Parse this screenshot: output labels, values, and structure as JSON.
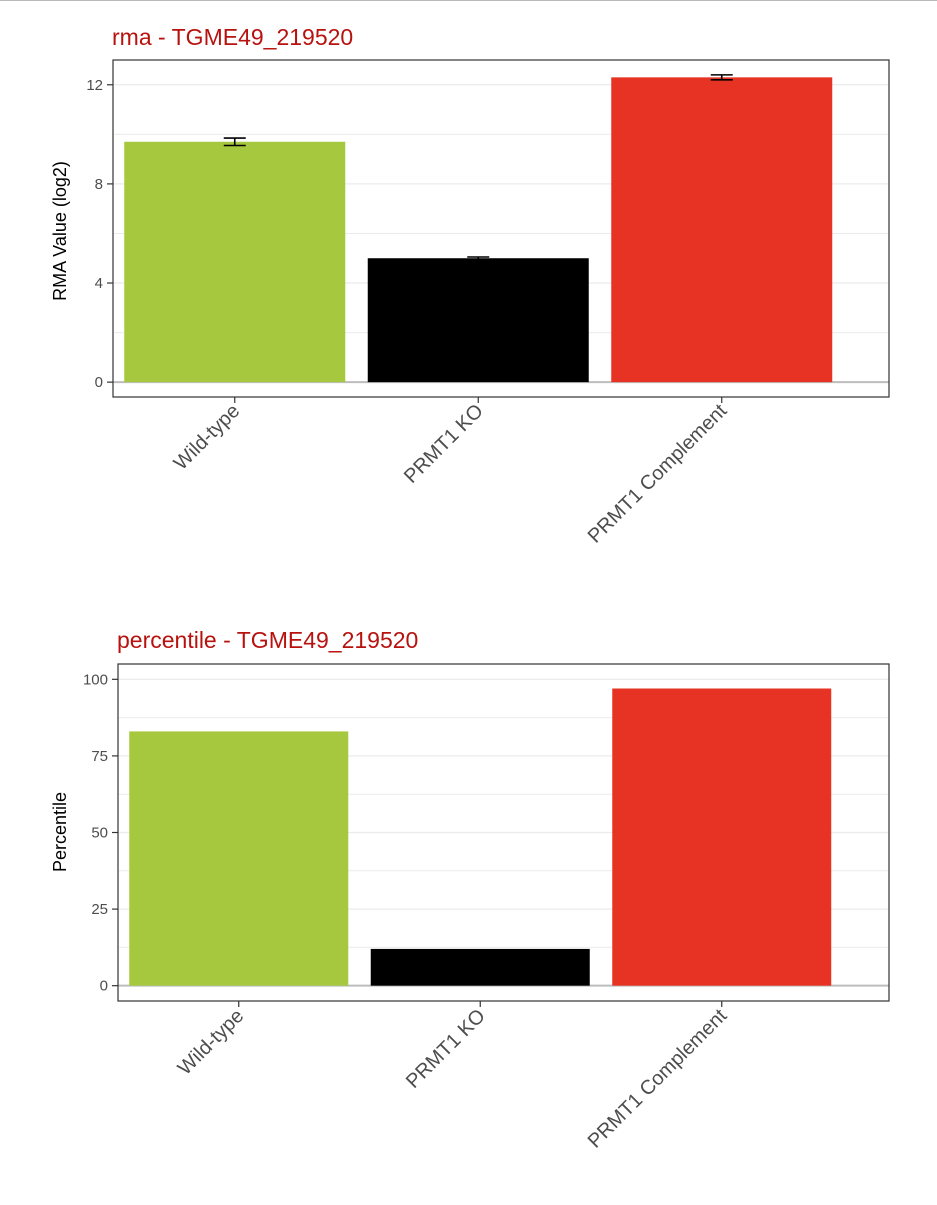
{
  "colors": {
    "title": "#b8120f",
    "wild_type": "#a6c83f",
    "ko": "#000000",
    "complement": "#e63323",
    "grid": "#ebebeb",
    "panel_border": "#333333",
    "zero_line": "#bdbdbd"
  },
  "chart_data": [
    {
      "type": "bar",
      "title": "rma - TGME49_219520",
      "xlabel": "",
      "ylabel": "RMA Value (log2)",
      "categories": [
        "Wild-type",
        "PRMT1 KO",
        "PRMT1 Complement"
      ],
      "values": [
        9.7,
        5.0,
        12.3
      ],
      "error": [
        0.15,
        0.05,
        0.1
      ],
      "ylim": [
        -0.6,
        13.0
      ],
      "yticks": [
        0,
        4,
        8,
        12
      ],
      "ytick_labels": [
        "0",
        "4",
        "8",
        "12"
      ],
      "grid": true,
      "legend": "none"
    },
    {
      "type": "bar",
      "title": "percentile - TGME49_219520",
      "xlabel": "",
      "ylabel": "Percentile",
      "categories": [
        "Wild-type",
        "PRMT1 KO",
        "PRMT1 Complement"
      ],
      "values": [
        83,
        12,
        97
      ],
      "ylim": [
        -5,
        105
      ],
      "yticks": [
        0,
        25,
        50,
        75,
        100
      ],
      "ytick_labels": [
        "0",
        "25",
        "50",
        "75",
        "100"
      ],
      "grid": true,
      "legend": "none"
    }
  ]
}
